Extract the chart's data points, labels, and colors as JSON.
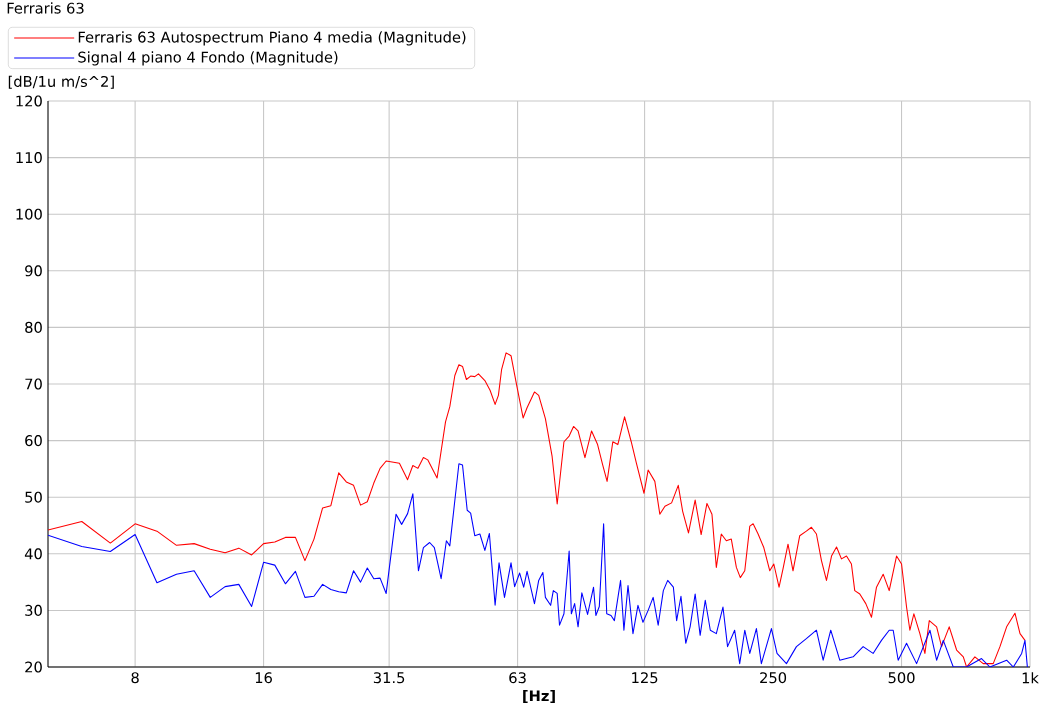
{
  "chart_data": {
    "type": "line",
    "title": "Ferraris 63",
    "xlabel": "[Hz]",
    "ylabel": "[dB/1u m/s^2]",
    "log": "x",
    "grid": true,
    "legend": "top",
    "marker": "none",
    "line_style": "solid",
    "xlim": [
      5,
      1000
    ],
    "ylim": [
      20,
      120
    ],
    "xticks": [
      8,
      16,
      31.5,
      63,
      125,
      250,
      500,
      {
        "value": 1000,
        "label": "1k"
      }
    ],
    "yticks": [
      20,
      30,
      40,
      50,
      60,
      70,
      80,
      90,
      100,
      110,
      120
    ],
    "series": [
      {
        "name": "Ferraris 63 Autospectrum Piano 4 media (Magnitude)",
        "color": "#ff0000",
        "x": [
          5,
          6,
          7,
          8,
          9,
          10,
          11,
          12,
          13,
          14,
          15,
          16,
          17,
          18,
          19,
          20,
          21,
          22,
          23,
          24,
          25,
          26,
          27,
          28,
          29,
          30,
          31,
          33.3,
          34.8,
          35.8,
          36.8,
          37.9,
          38.8,
          40.8,
          42.7,
          43.7,
          44.9,
          45.9,
          46.8,
          47.8,
          48.9,
          50.0,
          51.0,
          52.8,
          54.3,
          55.8,
          56.8,
          57.8,
          59.2,
          60.8,
          62.8,
          64.9,
          66.3,
          69.0,
          70.6,
          73.2,
          75.9,
          78.0,
          80.9,
          83.2,
          85.2,
          87.3,
          90.6,
          93.9,
          97.0,
          99.7,
          102.1,
          105.3,
          108.2,
          112.2,
          116.3,
          119.5,
          124.6,
          127.4,
          132.1,
          135.7,
          139.5,
          144.6,
          149.9,
          153.5,
          158.4,
          164.2,
          169.6,
          175.0,
          179.8,
          184.1,
          189.1,
          194.3,
          199.6,
          205.1,
          209.5,
          214.6,
          220.5,
          224.5,
          230.6,
          237.8,
          245.6,
          251,
          258.2,
          263.7,
          271.0,
          278.4,
          288.7,
          299.2,
          307.5,
          315.9,
          324.6,
          333.5,
          342.7,
          352.1,
          361.6,
          371.6,
          381.6,
          388.5,
          399.2,
          412.3,
          425.2,
          436.8,
          452.8,
          467.8,
          486.7,
          500,
          513.7,
          523.0,
          534.4,
          552.0,
          567.2,
          580.7,
          604.2,
          620.7,
          646.7,
          673.1,
          697.8,
          710.2,
          742.8,
          777,
          820,
          850.3,
          881.5,
          922,
          947.5,
          973.3
        ],
        "values": [
          44.2,
          45.7,
          41.9,
          45.3,
          44.0,
          41.5,
          41.8,
          40.8,
          40.2,
          41.0,
          39.8,
          41.8,
          42.1,
          42.9,
          42.9,
          38.8,
          42.6,
          48.1,
          48.5,
          54.3,
          52.7,
          52.1,
          48.6,
          49.2,
          52.5,
          55.1,
          56.4,
          56.0,
          53.1,
          55.6,
          55.1,
          57.0,
          56.6,
          53.4,
          63.3,
          66.0,
          71.5,
          73.4,
          73.1,
          70.8,
          71.4,
          71.3,
          71.8,
          70.6,
          68.9,
          66.4,
          68.0,
          72.6,
          75.5,
          75.0,
          69.5,
          64.0,
          65.8,
          68.6,
          68.0,
          63.9,
          57.2,
          48.8,
          59.8,
          60.8,
          62.5,
          61.7,
          57.0,
          61.7,
          59.3,
          55.7,
          52.8,
          59.8,
          59.3,
          64.2,
          59.8,
          56.1,
          50.7,
          54.8,
          52.8,
          47.0,
          48.4,
          49.0,
          52.1,
          47.5,
          43.7,
          49.5,
          43.4,
          48.9,
          47.0,
          37.6,
          43.5,
          42.3,
          42.6,
          37.6,
          35.8,
          37.0,
          44.9,
          45.3,
          43.5,
          41.1,
          37.0,
          38.2,
          34.1,
          37.3,
          41.7,
          37.0,
          43.2,
          44.0,
          44.7,
          43.5,
          38.8,
          35.3,
          39.6,
          41.2,
          39.1,
          39.6,
          38.2,
          33.5,
          32.9,
          31.2,
          28.8,
          34.1,
          36.4,
          33.5,
          39.6,
          38.2,
          30.6,
          26.5,
          29.4,
          25.9,
          22.4,
          28.2,
          27.1,
          23.6,
          27.1,
          23.0,
          21.8,
          20,
          21.8,
          20.6,
          20.6,
          23.6,
          27.1,
          29.5,
          25.9,
          24.7
        ]
      },
      {
        "name": "Signal 4 piano 4 Fondo (Magnitude)",
        "color": "#0000ff",
        "x": [
          5,
          6,
          7,
          8,
          9,
          10,
          11,
          12,
          13,
          14,
          15,
          16,
          17,
          18,
          19,
          20,
          21,
          22,
          23,
          24,
          25,
          26,
          27,
          28,
          29,
          30,
          31,
          32.7,
          33.7,
          34.8,
          35.8,
          36.9,
          37.9,
          39.2,
          40.2,
          41.7,
          42.9,
          43.7,
          45.9,
          46.8,
          48.0,
          48.9,
          50.0,
          51.4,
          52.8,
          54.1,
          55.8,
          57.0,
          58.7,
          60.8,
          62.0,
          63.7,
          65.1,
          66.3,
          69.0,
          70.6,
          72.2,
          73.2,
          75.3,
          76.4,
          78.0,
          79.0,
          80.9,
          83.2,
          84.2,
          85.7,
          87.3,
          89.1,
          91.9,
          94.9,
          96.1,
          97.9,
          100.2,
          101.9,
          104.3,
          106.2,
          109.8,
          111.8,
          114.3,
          117.4,
          120.6,
          123.9,
          127.4,
          130.9,
          134.5,
          138.3,
          141.6,
          146.0,
          148.6,
          152.1,
          156.1,
          159.8,
          164.2,
          168.7,
          173.4,
          178.2,
          184.1,
          190.8,
          195.6,
          203.2,
          208.8,
          214.6,
          220.5,
          228.5,
          234.7,
          247.8,
          255.4,
          268.7,
          283.6,
          299.2,
          315.9,
          327.6,
          341.3,
          358.3,
          385.1,
          406.4,
          428.9,
          448.7,
          467.8,
          478.0,
          491.0,
          513.7,
          542.3,
          582.8,
          604.2,
          626.3,
          661.0,
          710,
          770,
          805.5,
          881.5,
          914,
          956,
          973.3,
          985.8
        ],
        "values": [
          43.3,
          41.3,
          40.4,
          43.4,
          34.9,
          36.4,
          37.0,
          32.3,
          34.2,
          34.6,
          30.7,
          38.5,
          38.0,
          34.7,
          36.9,
          32.3,
          32.5,
          34.6,
          33.7,
          33.3,
          33.1,
          37.0,
          35.0,
          37.5,
          35.6,
          35.7,
          33.0,
          47.0,
          45.2,
          47.1,
          50.6,
          37.0,
          41.1,
          42.0,
          41.1,
          35.6,
          42.3,
          41.4,
          55.9,
          55.7,
          47.7,
          47.2,
          43.2,
          43.5,
          40.6,
          43.6,
          30.9,
          38.4,
          32.3,
          38.4,
          34.2,
          36.6,
          34.1,
          36.9,
          31.2,
          35.3,
          36.7,
          32.3,
          30.9,
          33.5,
          33.0,
          27.4,
          29.4,
          40.5,
          29.4,
          31.2,
          27.1,
          33.1,
          29.3,
          34.1,
          29.1,
          30.7,
          45.3,
          29.4,
          29.1,
          28.2,
          35.3,
          26.5,
          34.4,
          25.9,
          30.9,
          27.9,
          30.0,
          32.3,
          27.4,
          33.5,
          35.3,
          34.1,
          28.2,
          32.5,
          24.2,
          27.1,
          32.9,
          25.6,
          31.8,
          26.5,
          25.9,
          30.6,
          23.6,
          26.5,
          20.6,
          26.5,
          22.4,
          26.8,
          20.6,
          26.8,
          22.4,
          20.6,
          23.6,
          25.0,
          26.5,
          21.2,
          26.5,
          21.2,
          21.8,
          23.6,
          22.4,
          24.7,
          26.5,
          26.5,
          21.2,
          24.2,
          20.6,
          26.5,
          21.2,
          24.7,
          20,
          20,
          21.5,
          20,
          21.2,
          20,
          22.4,
          24.7,
          20
        ]
      }
    ]
  }
}
